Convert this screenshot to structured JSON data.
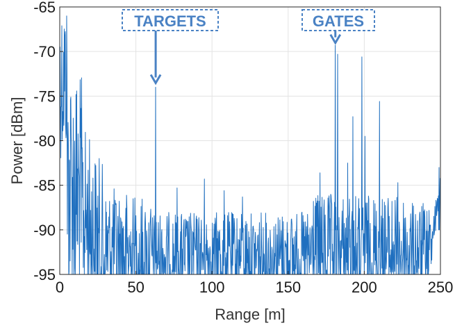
{
  "chart_data": {
    "type": "line",
    "xlabel": "Range [m]",
    "ylabel": "Power [dBm]",
    "xlim": [
      0,
      250
    ],
    "ylim": [
      -95,
      -65
    ],
    "xticks": [
      0,
      50,
      100,
      150,
      200,
      250
    ],
    "yticks": [
      -95,
      -90,
      -85,
      -80,
      -75,
      -70,
      -65
    ],
    "xtick_labels": [
      "0",
      "50",
      "100",
      "150",
      "200",
      "250"
    ],
    "ytick_labels": [
      "-95",
      "-90",
      "-85",
      "-80",
      "-75",
      "-70",
      "-65"
    ],
    "grid": true,
    "line_color": "#1f6fbf",
    "annotation_color": "#4a82c4",
    "annotations": [
      {
        "text": "TARGETS",
        "target": [
          63,
          -74
        ]
      },
      {
        "text": "GATES",
        "target": [
          181,
          -69.5
        ]
      }
    ],
    "peaks": [
      {
        "x": 63,
        "y": -74
      },
      {
        "x": 181,
        "y": -69.3
      },
      {
        "x": 182.5,
        "y": -70.3
      },
      {
        "x": 198.5,
        "y": -70.6
      },
      {
        "x": 210,
        "y": -75.6
      },
      {
        "x": 192.5,
        "y": -77.3
      },
      {
        "x": 200.5,
        "y": -79.5
      },
      {
        "x": 189,
        "y": -82.5
      },
      {
        "x": 222,
        "y": -84.7
      },
      {
        "x": 171,
        "y": -83.6
      },
      {
        "x": 166.5,
        "y": -86.8
      },
      {
        "x": 249,
        "y": -83
      },
      {
        "x": 95,
        "y": -84.3
      },
      {
        "x": 77,
        "y": -85.3
      },
      {
        "x": 108,
        "y": -85.6
      },
      {
        "x": 120,
        "y": -86.3
      }
    ]
  }
}
